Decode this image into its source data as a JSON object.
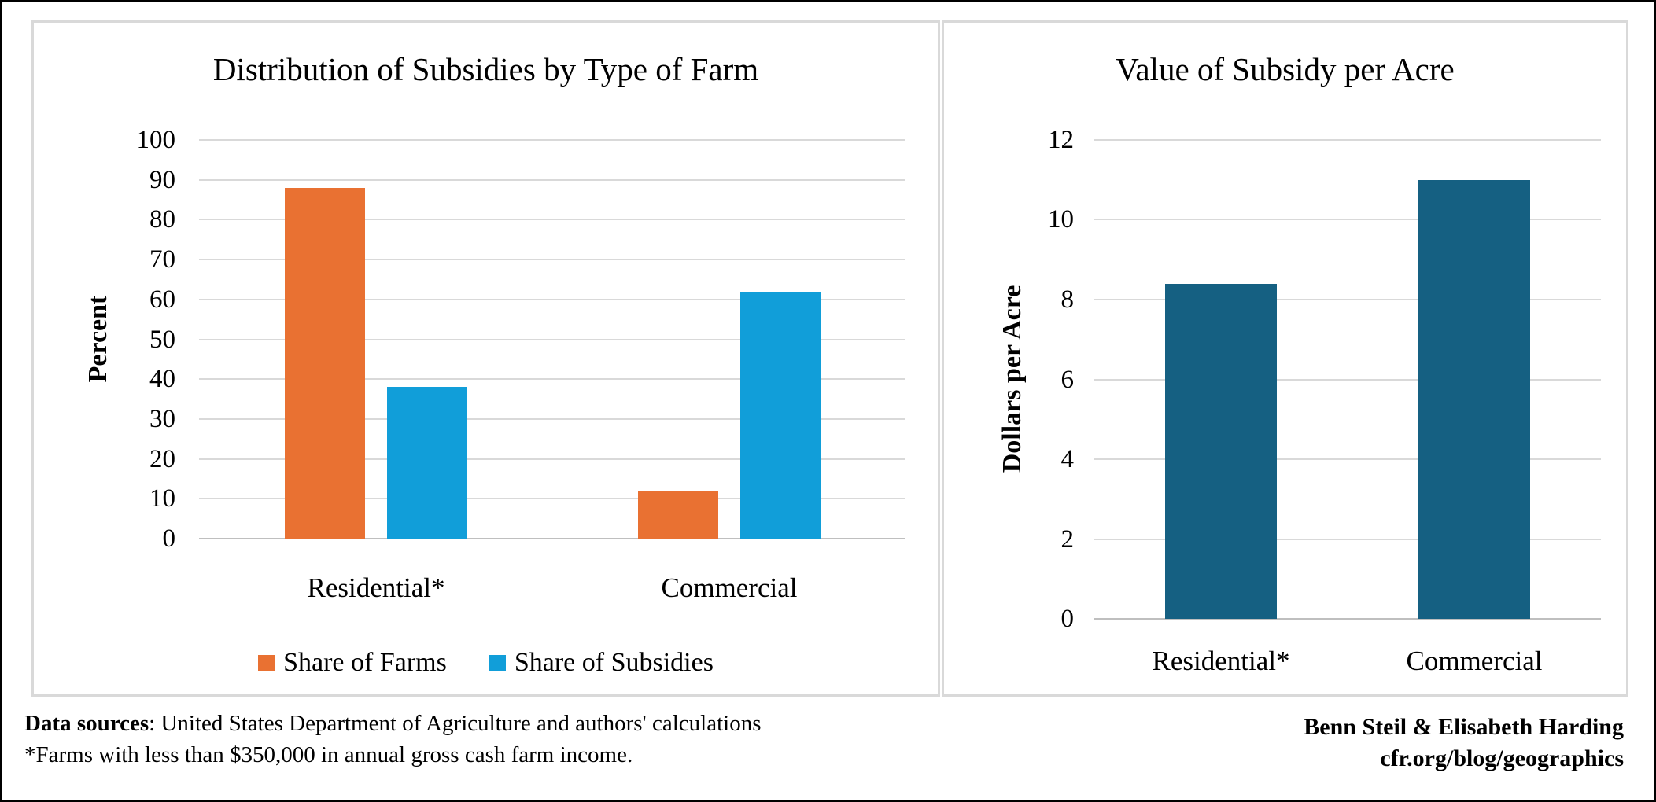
{
  "chart_data": [
    {
      "type": "bar",
      "title": "Distribution of Subsidies by Type of Farm",
      "categories": [
        "Residential*",
        "Commercial"
      ],
      "series": [
        {
          "name": "Share of Farms",
          "color": "#E97132",
          "values": [
            88,
            12
          ]
        },
        {
          "name": "Share of Subsidies",
          "color": "#119ED9",
          "values": [
            38,
            62
          ]
        }
      ],
      "xlabel": "",
      "ylabel": "Percent",
      "ylim": [
        0,
        100
      ],
      "ytick_step": 10,
      "grid": true,
      "legend_position": "bottom"
    },
    {
      "type": "bar",
      "title": "Value of Subsidy per Acre",
      "categories": [
        "Residential*",
        "Commercial"
      ],
      "series": [
        {
          "name": "Dollars per Acre",
          "color": "#156082",
          "values": [
            8.4,
            11
          ]
        }
      ],
      "xlabel": "",
      "ylabel": "Dollars per Acre",
      "ylim": [
        0,
        12
      ],
      "ytick_step": 2,
      "grid": true,
      "legend_position": "none"
    }
  ],
  "footer": {
    "sources_label": "Data sources",
    "sources_rest": ": United States Department of Agriculture and authors' calculations",
    "footnote": "*Farms with less than $350,000 in annual gross cash farm income.",
    "credit_name": "Benn Steil & Elisabeth Harding",
    "credit_url": "cfr.org/blog/geographics"
  },
  "style_colors": {
    "gridline": "#D9D9D9",
    "axis_line": "#BFBFBF",
    "panel_border": "#D9D9D9",
    "frame_border": "#000000"
  }
}
